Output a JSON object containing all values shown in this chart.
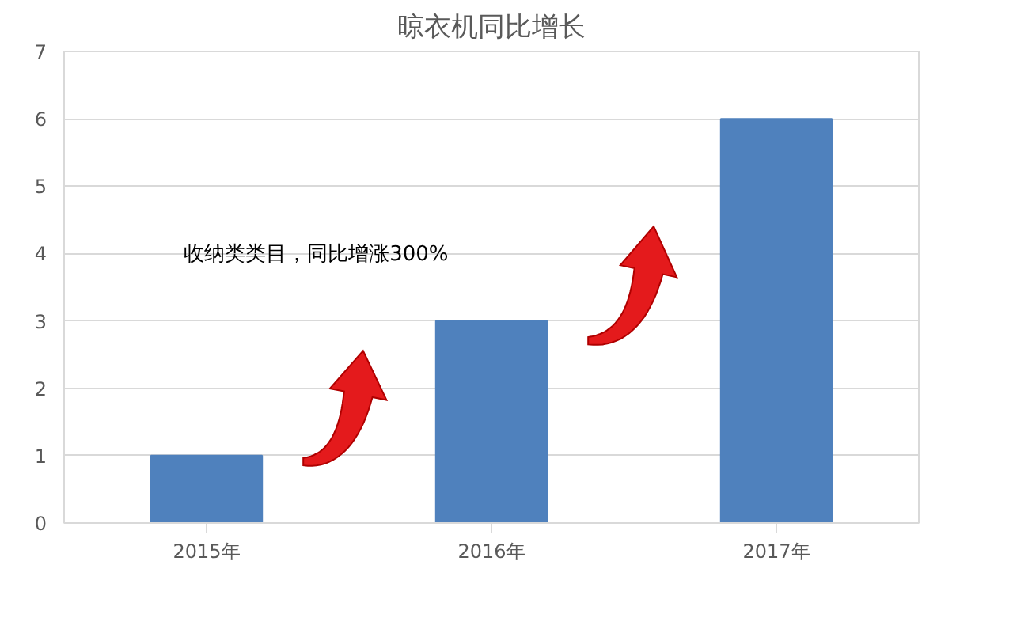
{
  "chart_data": {
    "type": "bar",
    "title": "晾衣机同比增长",
    "categories": [
      "2015年",
      "2016年",
      "2017年"
    ],
    "values": [
      1,
      3,
      6
    ],
    "color": "#4f81bd",
    "ylim": [
      0,
      7
    ],
    "yticks": [
      0,
      1,
      2,
      3,
      4,
      5,
      6,
      7
    ],
    "grid": "y",
    "annotations": [
      "收纳类类目，同比增涨300%"
    ]
  }
}
